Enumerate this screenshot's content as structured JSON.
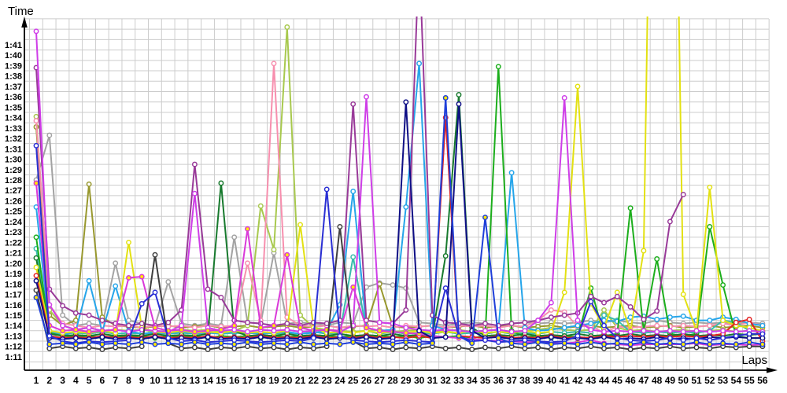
{
  "chart_data": {
    "type": "line",
    "title": "",
    "xlabel": "Laps",
    "ylabel": "Time",
    "x_ticks": [
      1,
      2,
      3,
      4,
      5,
      6,
      7,
      8,
      9,
      10,
      11,
      12,
      13,
      14,
      15,
      16,
      17,
      18,
      19,
      20,
      21,
      22,
      23,
      24,
      25,
      26,
      27,
      28,
      29,
      30,
      31,
      32,
      33,
      34,
      35,
      36,
      37,
      38,
      39,
      40,
      41,
      42,
      43,
      44,
      45,
      46,
      47,
      48,
      49,
      50,
      51,
      52,
      53,
      54,
      55,
      56
    ],
    "y_ticks": [
      "1:11",
      "1:12",
      "1:13",
      "1:14",
      "1:15",
      "1:16",
      "1:17",
      "1:18",
      "1:19",
      "1:20",
      "1:21",
      "1:22",
      "1:23",
      "1:24",
      "1:25",
      "1:26",
      "1:27",
      "1:28",
      "1:29",
      "1:30",
      "1:31",
      "1:32",
      "1:33",
      "1:34",
      "1:35",
      "1:36",
      "1:37",
      "1:38",
      "1:39",
      "1:40",
      "1:41"
    ],
    "ylim_seconds": [
      71,
      101
    ],
    "grid": true,
    "legend": "none",
    "grid_color": "#cccccc",
    "axis_color": "#000000",
    "units": "lap time in seconds (m:ss shown on axis)",
    "series": [
      {
        "name": "gray",
        "color": "#a3a3a3",
        "marker_fill": "#ffffff",
        "values": [
          88.0,
          92.3,
          75.0,
          74.0,
          74.2,
          74.0,
          80.0,
          74.5,
          74.2,
          74.0,
          78.2,
          74.2,
          74.0,
          74.2,
          74.0,
          82.5,
          74.3,
          74.2,
          81.0,
          74.2,
          74.3,
          74.2,
          74.0,
          74.3,
          74.2,
          77.7,
          78.1,
          77.9,
          77.6,
          74.3,
          74.2,
          74.0,
          74.2,
          74.3,
          74.2,
          74.0,
          74.2,
          74.3,
          74.2,
          74.3,
          74.2,
          74.3,
          74.5,
          74.3,
          74.5,
          74.3,
          74.2,
          74.5,
          74.3,
          74.2,
          74.3,
          74.2,
          74.3,
          74.2,
          74.3,
          74.2
        ]
      },
      {
        "name": "olive",
        "color": "#98982e",
        "marker_fill": "#ffffff",
        "values": [
          93.1,
          75.0,
          74.0,
          74.5,
          87.6,
          74.8,
          74.0,
          73.9,
          73.8,
          73.9,
          74.0,
          73.8,
          73.9,
          74.0,
          73.8,
          73.9,
          74.0,
          73.8,
          73.9,
          74.0,
          73.8,
          73.9,
          74.0,
          73.8,
          73.9,
          74.0,
          78.0,
          73.9,
          73.8,
          73.9,
          74.0,
          73.8,
          73.9,
          74.0,
          73.8,
          73.9,
          74.0,
          73.8,
          73.9,
          74.0,
          73.8,
          73.9,
          74.0,
          73.8,
          73.9,
          74.0,
          73.8,
          73.9,
          74.0,
          73.8,
          73.9,
          74.0,
          73.8,
          73.9,
          74.0,
          73.8
        ]
      },
      {
        "name": "light-green",
        "color": "#a8c94e",
        "marker_fill": "#ffffff",
        "values": [
          94.1,
          75.5,
          74.0,
          73.6,
          73.8,
          73.5,
          73.6,
          73.5,
          73.6,
          73.4,
          73.5,
          73.6,
          73.5,
          73.6,
          73.4,
          73.5,
          74.0,
          85.5,
          81.3,
          102.7,
          75.0,
          73.8,
          73.6,
          73.5,
          73.4,
          73.5,
          73.6,
          73.4,
          73.5,
          73.6,
          73.4,
          73.5,
          73.6,
          73.4,
          73.5,
          73.6,
          73.4,
          73.5,
          73.6,
          73.8,
          73.6,
          73.5,
          73.6,
          75.5,
          73.8,
          73.5,
          73.6,
          73.4,
          73.5,
          73.6,
          73.4,
          73.5,
          73.6,
          73.4,
          73.5,
          73.4
        ]
      },
      {
        "name": "pink",
        "color": "#f78fae",
        "marker_fill": "#ffffff",
        "values": [
          93.7,
          76.0,
          74.2,
          74.0,
          73.8,
          74.0,
          73.9,
          74.0,
          73.8,
          74.0,
          73.9,
          74.0,
          73.8,
          74.0,
          73.9,
          74.0,
          80.0,
          74.5,
          99.2,
          74.8,
          74.0,
          73.9,
          74.0,
          73.8,
          74.0,
          73.9,
          74.0,
          73.8,
          74.0,
          73.9,
          74.0,
          73.8,
          74.0,
          73.9,
          74.0,
          73.8,
          74.0,
          73.9,
          74.5,
          75.5,
          75.3,
          73.9,
          74.0,
          73.3,
          73.9,
          73.8,
          73.9,
          74.0,
          73.9,
          74.0,
          73.9,
          74.0,
          74.2,
          74.0,
          74.3,
          74.0
        ]
      },
      {
        "name": "teal",
        "color": "#38bcac",
        "marker_fill": "#ffffff",
        "values": [
          81.4,
          73.5,
          73.2,
          73.3,
          73.2,
          73.4,
          73.2,
          73.3,
          73.2,
          73.4,
          73.2,
          73.3,
          73.2,
          73.4,
          73.2,
          73.3,
          73.2,
          73.4,
          73.2,
          73.3,
          73.2,
          73.4,
          73.2,
          73.3,
          80.6,
          73.5,
          73.2,
          73.4,
          73.2,
          73.3,
          73.2,
          73.4,
          73.2,
          73.3,
          73.2,
          73.4,
          73.2,
          73.3,
          73.2,
          73.4,
          73.3,
          73.4,
          73.3,
          75.0,
          74.5,
          73.4,
          73.3,
          73.4,
          73.3,
          73.4,
          73.3,
          73.5,
          74.5,
          74.3,
          73.5,
          73.5
        ]
      },
      {
        "name": "sky-blue",
        "color": "#25a5ea",
        "marker_fill": "#ffffff",
        "values": [
          85.4,
          73.5,
          73.0,
          73.5,
          78.3,
          73.4,
          77.8,
          73.5,
          73.2,
          73.3,
          73.2,
          73.4,
          73.2,
          73.3,
          73.2,
          73.4,
          73.3,
          73.2,
          73.3,
          73.4,
          73.2,
          73.3,
          73.5,
          76.0,
          86.9,
          73.8,
          73.5,
          73.6,
          85.4,
          99.2,
          74.0,
          73.6,
          73.5,
          73.4,
          73.5,
          73.6,
          88.7,
          73.8,
          73.5,
          73.6,
          73.8,
          74.0,
          74.2,
          74.5,
          74.4,
          74.8,
          74.9,
          74.6,
          74.8,
          74.9,
          74.5,
          74.5,
          74.8,
          74.6,
          74.2,
          74.0
        ]
      },
      {
        "name": "green",
        "color": "#1cae1c",
        "marker_fill": "#ffffff",
        "values": [
          82.5,
          73.3,
          73.0,
          72.9,
          73.0,
          72.8,
          73.0,
          72.9,
          73.0,
          72.8,
          73.0,
          72.9,
          73.0,
          72.8,
          73.0,
          72.9,
          73.0,
          72.8,
          73.0,
          72.9,
          73.0,
          72.8,
          73.0,
          72.9,
          73.0,
          72.8,
          73.0,
          72.9,
          73.0,
          72.8,
          73.0,
          72.9,
          73.0,
          72.8,
          73.0,
          98.9,
          73.5,
          72.9,
          73.0,
          72.8,
          73.0,
          72.9,
          77.6,
          73.0,
          73.2,
          85.3,
          73.5,
          80.4,
          73.2,
          73.0,
          73.2,
          83.5,
          77.9,
          73.0,
          72.8,
          72.8
        ]
      },
      {
        "name": "dark-green",
        "color": "#187a2e",
        "marker_fill": "#ffffff",
        "values": [
          80.5,
          73.2,
          73.0,
          73.1,
          73.0,
          73.2,
          73.0,
          73.1,
          73.0,
          73.2,
          73.0,
          73.1,
          73.0,
          73.2,
          87.7,
          73.5,
          73.0,
          73.1,
          73.0,
          73.2,
          73.0,
          73.1,
          73.0,
          73.2,
          73.0,
          73.1,
          73.0,
          73.2,
          73.0,
          73.1,
          73.0,
          80.7,
          96.2,
          73.8,
          73.0,
          73.1,
          73.0,
          73.2,
          73.0,
          73.1,
          73.0,
          73.2,
          73.0,
          73.1,
          73.0,
          73.2,
          73.0,
          73.1,
          73.0,
          73.2,
          73.0,
          73.1,
          73.0,
          73.2,
          73.1,
          73.2
        ]
      },
      {
        "name": "yellow",
        "color": "#e3e112",
        "marker_fill": "#ffffff",
        "values": [
          79.6,
          73.5,
          73.3,
          73.4,
          73.3,
          73.5,
          73.3,
          82.0,
          73.8,
          73.4,
          73.3,
          73.5,
          73.3,
          73.4,
          73.3,
          73.5,
          73.3,
          73.4,
          73.3,
          73.5,
          83.7,
          73.8,
          73.3,
          73.4,
          73.3,
          73.5,
          73.3,
          73.4,
          73.3,
          73.5,
          73.3,
          73.4,
          73.3,
          73.5,
          73.3,
          73.4,
          73.3,
          73.5,
          73.3,
          73.4,
          77.2,
          97.0,
          76.1,
          73.8,
          77.2,
          73.5,
          81.2,
          161.0,
          158.0,
          77.0,
          73.5,
          87.3,
          74.5,
          74.0,
          73.8,
          73.5
        ]
      },
      {
        "name": "red",
        "color": "#e32222",
        "marker_fill": "#ffffff",
        "values": [
          78.8,
          73.0,
          72.8,
          72.9,
          72.8,
          73.0,
          72.8,
          72.9,
          72.8,
          73.0,
          72.8,
          72.9,
          72.8,
          73.0,
          72.8,
          72.9,
          72.8,
          73.0,
          72.8,
          72.9,
          72.8,
          73.0,
          72.8,
          72.9,
          72.8,
          73.0,
          72.8,
          72.9,
          72.8,
          73.0,
          72.8,
          94.0,
          73.0,
          72.9,
          72.8,
          73.0,
          72.8,
          72.9,
          72.8,
          73.0,
          72.8,
          72.9,
          72.8,
          73.0,
          72.9,
          73.0,
          72.9,
          73.0,
          72.9,
          73.0,
          72.9,
          73.0,
          73.2,
          74.3,
          74.6,
          72.5
        ]
      },
      {
        "name": "purple",
        "color": "#993a99",
        "marker_fill": "#ffffff",
        "values": [
          98.8,
          77.5,
          75.9,
          75.2,
          75.0,
          74.5,
          74.2,
          74.0,
          74.2,
          74.0,
          74.3,
          75.5,
          89.5,
          77.5,
          76.7,
          74.5,
          74.3,
          74.2,
          74.0,
          74.2,
          74.0,
          74.3,
          74.2,
          74.5,
          95.3,
          74.5,
          74.3,
          74.2,
          75.5,
          110.0,
          75.0,
          74.3,
          74.2,
          74.0,
          74.2,
          74.0,
          74.2,
          74.3,
          74.5,
          74.8,
          75.0,
          75.2,
          76.8,
          76.2,
          76.8,
          75.8,
          74.6,
          75.4,
          84.0,
          86.6,
          null,
          null,
          null,
          null,
          null,
          null
        ]
      },
      {
        "name": "magenta",
        "color": "#cf3ee8",
        "marker_fill": "#ffffff",
        "values": [
          102.3,
          76.0,
          74.0,
          73.6,
          73.8,
          73.5,
          73.6,
          73.4,
          73.6,
          73.5,
          73.4,
          74.0,
          86.7,
          73.8,
          73.5,
          73.6,
          73.4,
          73.6,
          73.5,
          73.6,
          73.4,
          73.5,
          73.6,
          73.4,
          74.0,
          96.0,
          74.3,
          74.2,
          73.8,
          73.6,
          73.5,
          73.6,
          73.5,
          73.4,
          73.5,
          73.6,
          73.4,
          73.5,
          74.5,
          76.2,
          95.9,
          74.5,
          73.6,
          73.4,
          73.5,
          73.4,
          73.5,
          73.4,
          73.5,
          73.4,
          73.5,
          73.4,
          73.5,
          73.4,
          73.5,
          73.4
        ]
      },
      {
        "name": "magenta-yellow-dot",
        "color": "#d939d9",
        "marker_fill": "#ffe800",
        "values": [
          87.7,
          74.0,
          73.5,
          73.6,
          73.4,
          73.5,
          73.6,
          78.6,
          78.7,
          73.8,
          73.5,
          73.6,
          73.4,
          73.5,
          73.6,
          74.0,
          83.3,
          73.8,
          74.0,
          80.8,
          73.8,
          73.5,
          73.6,
          73.5,
          77.7,
          73.8,
          73.5,
          73.4,
          73.3,
          73.2,
          73.0,
          72.9,
          72.8,
          72.7,
          72.6,
          72.5,
          72.5,
          72.4,
          72.4,
          72.3,
          72.3,
          72.4,
          72.6,
          72.3,
          72.2,
          72.1,
          72.2,
          72.2,
          72.2,
          72.2,
          72.3,
          72.1,
          72.2,
          72.2,
          72.1,
          72.2
        ]
      },
      {
        "name": "navy",
        "color": "#0f0f86",
        "marker_fill": "#ffffff",
        "values": [
          78.3,
          72.8,
          72.7,
          72.8,
          72.7,
          72.9,
          72.7,
          72.8,
          72.7,
          72.9,
          72.7,
          72.8,
          72.7,
          72.9,
          72.7,
          72.8,
          72.7,
          72.9,
          72.7,
          72.8,
          72.7,
          72.9,
          72.7,
          72.8,
          72.7,
          72.9,
          72.7,
          72.8,
          95.5,
          73.5,
          72.8,
          72.9,
          95.3,
          73.5,
          72.8,
          72.9,
          72.7,
          72.8,
          72.7,
          72.9,
          72.7,
          72.8,
          72.7,
          72.9,
          72.7,
          72.8,
          72.7,
          72.9,
          72.7,
          72.8,
          72.7,
          72.9,
          72.8,
          72.9,
          72.8,
          72.8
        ]
      },
      {
        "name": "black",
        "color": "#3f3f3f",
        "marker_fill": "#ffffff",
        "values": [
          77.4,
          71.8,
          72.0,
          71.8,
          71.9,
          71.7,
          71.9,
          71.8,
          72.0,
          80.8,
          72.3,
          71.8,
          71.9,
          71.7,
          71.9,
          71.8,
          72.0,
          71.8,
          71.9,
          71.7,
          71.9,
          71.8,
          72.0,
          83.5,
          72.5,
          71.8,
          71.9,
          71.7,
          71.9,
          71.8,
          72.0,
          71.8,
          71.9,
          71.7,
          71.9,
          71.8,
          72.0,
          71.8,
          71.9,
          71.7,
          71.9,
          71.8,
          72.0,
          71.8,
          71.9,
          71.7,
          71.9,
          71.8,
          72.0,
          71.8,
          71.9,
          71.8,
          72.0,
          71.9,
          72.0,
          72.0
        ]
      },
      {
        "name": "blue",
        "color": "#2a2fd4",
        "marker_fill": "#ffffff",
        "values": [
          91.3,
          73.0,
          72.5,
          72.3,
          72.5,
          72.4,
          72.5,
          72.6,
          76.1,
          77.2,
          72.8,
          72.5,
          72.6,
          72.4,
          72.5,
          72.6,
          72.5,
          72.4,
          72.5,
          72.6,
          72.5,
          72.8,
          87.1,
          73.0,
          72.6,
          72.5,
          72.4,
          72.5,
          72.6,
          72.5,
          72.4,
          77.6,
          73.0,
          72.5,
          72.6,
          72.4,
          72.5,
          72.6,
          72.5,
          72.4,
          72.5,
          73.0,
          76.3,
          74.0,
          72.8,
          72.6,
          72.5,
          72.6,
          72.8,
          72.6,
          72.8,
          72.6,
          72.8,
          73.0,
          73.2,
          73.2
        ]
      },
      {
        "name": "blue-yellow-dot",
        "color": "#1f3fd9",
        "marker_fill": "#ffe800",
        "values": [
          76.7,
          72.2,
          72.3,
          72.2,
          72.4,
          72.2,
          72.3,
          72.2,
          72.4,
          72.2,
          72.3,
          72.2,
          72.4,
          72.2,
          72.3,
          72.2,
          72.4,
          72.2,
          72.3,
          72.2,
          72.4,
          72.2,
          72.3,
          72.2,
          72.4,
          72.2,
          72.3,
          72.2,
          72.4,
          72.2,
          72.3,
          95.9,
          73.0,
          72.3,
          84.4,
          72.8,
          72.3,
          72.2,
          72.4,
          72.2,
          72.3,
          72.2,
          72.4,
          72.2,
          72.3,
          72.2,
          72.4,
          72.2,
          72.3,
          72.2,
          72.4,
          72.2,
          72.3,
          72.2,
          72.4,
          72.2
        ]
      }
    ]
  }
}
